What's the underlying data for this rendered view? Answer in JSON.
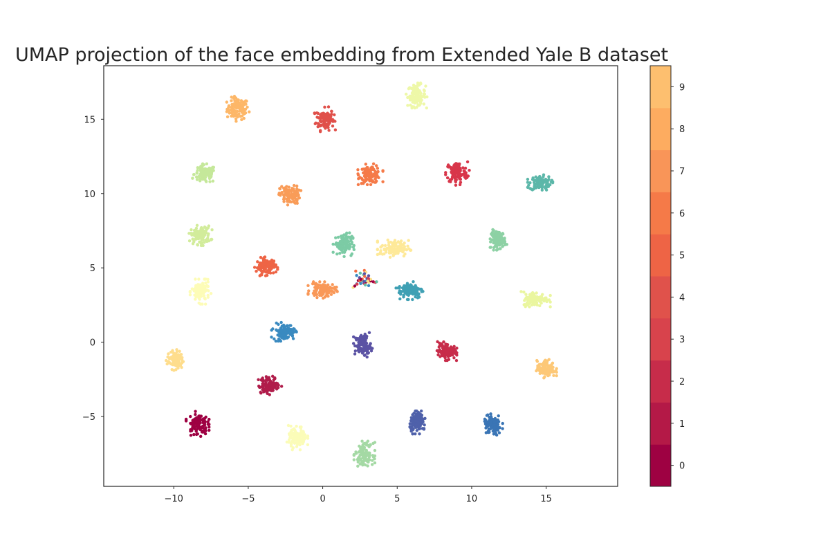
{
  "chart_data": {
    "type": "scatter",
    "title": "UMAP projection of the face embedding from Extended Yale B dataset",
    "xlabel": "",
    "ylabel": "",
    "xlim": [
      -14.7,
      19.8
    ],
    "ylim": [
      -9.7,
      18.6
    ],
    "xticks": [
      -10,
      -5,
      0,
      5,
      10,
      15
    ],
    "yticks": [
      -5,
      0,
      5,
      10,
      15
    ],
    "xtick_labels": [
      "−10",
      "−5",
      "0",
      "5",
      "10",
      "15"
    ],
    "ytick_labels": [
      "−5",
      "0",
      "5",
      "10",
      "15"
    ],
    "grid": false,
    "colorbar": {
      "ticks": [
        "0",
        "1",
        "2",
        "3",
        "4",
        "5",
        "6",
        "7",
        "8",
        "9"
      ],
      "colors": [
        "#9e0142",
        "#b41947",
        "#c72c4a",
        "#d8434c",
        "#e0524b",
        "#ee6445",
        "#f57a48",
        "#f99558",
        "#fdac60",
        "#fdbf6f"
      ]
    },
    "clusters": [
      {
        "x": -5.7,
        "y": 15.7,
        "sx": 0.6,
        "sy": 0.6,
        "color": "#fdb768"
      },
      {
        "x": 0.15,
        "y": 15.0,
        "sx": 0.5,
        "sy": 0.6,
        "color": "#e0504a"
      },
      {
        "x": 6.3,
        "y": 16.6,
        "sx": 0.5,
        "sy": 0.6,
        "color": "#eef8a8"
      },
      {
        "x": -7.9,
        "y": 11.3,
        "sx": 0.6,
        "sy": 0.5,
        "color": "#c5e89a"
      },
      {
        "x": 3.2,
        "y": 11.3,
        "sx": 0.6,
        "sy": 0.5,
        "color": "#f57a48"
      },
      {
        "x": 9.0,
        "y": 11.4,
        "sx": 0.6,
        "sy": 0.6,
        "color": "#d8364a"
      },
      {
        "x": 14.6,
        "y": 10.7,
        "sx": 0.6,
        "sy": 0.4,
        "color": "#5cb7a9"
      },
      {
        "x": -2.2,
        "y": 9.9,
        "sx": 0.55,
        "sy": 0.5,
        "color": "#f99c58"
      },
      {
        "x": -8.2,
        "y": 7.2,
        "sx": 0.55,
        "sy": 0.5,
        "color": "#d2ec9b"
      },
      {
        "x": 11.8,
        "y": 6.9,
        "sx": 0.4,
        "sy": 0.5,
        "color": "#8dd1a4"
      },
      {
        "x": -3.8,
        "y": 5.1,
        "sx": 0.55,
        "sy": 0.45,
        "color": "#ee6445"
      },
      {
        "x": -8.2,
        "y": 3.4,
        "sx": 0.5,
        "sy": 0.6,
        "color": "#fdfcb7"
      },
      {
        "x": 0.0,
        "y": 3.5,
        "sx": 0.7,
        "sy": 0.4,
        "color": "#f99858"
      },
      {
        "x": 1.4,
        "y": 6.6,
        "sx": 0.5,
        "sy": 0.6,
        "color": "#7ccba5"
      },
      {
        "x": 4.8,
        "y": 6.3,
        "sx": 0.8,
        "sy": 0.45,
        "color": "#fee999"
      },
      {
        "x": 5.9,
        "y": 3.5,
        "sx": 0.7,
        "sy": 0.45,
        "color": "#3fa0b4"
      },
      {
        "x": 14.3,
        "y": 2.9,
        "sx": 0.7,
        "sy": 0.4,
        "color": "#eaf69f"
      },
      {
        "x": -2.6,
        "y": 0.7,
        "sx": 0.6,
        "sy": 0.45,
        "color": "#3a8ac0"
      },
      {
        "x": 2.7,
        "y": -0.2,
        "sx": 0.45,
        "sy": 0.6,
        "color": "#5b53a4"
      },
      {
        "x": 8.3,
        "y": -0.6,
        "sx": 0.5,
        "sy": 0.45,
        "color": "#c72c4a"
      },
      {
        "x": -9.9,
        "y": -1.2,
        "sx": 0.45,
        "sy": 0.5,
        "color": "#fedd8d"
      },
      {
        "x": 15.0,
        "y": -1.8,
        "sx": 0.5,
        "sy": 0.45,
        "color": "#fdc877"
      },
      {
        "x": -3.6,
        "y": -2.9,
        "sx": 0.6,
        "sy": 0.45,
        "color": "#b01c4a"
      },
      {
        "x": -8.4,
        "y": -5.5,
        "sx": 0.55,
        "sy": 0.6,
        "color": "#9e0142"
      },
      {
        "x": -1.7,
        "y": -6.4,
        "sx": 0.5,
        "sy": 0.6,
        "color": "#fbfcb8"
      },
      {
        "x": 6.4,
        "y": -5.4,
        "sx": 0.45,
        "sy": 0.55,
        "color": "#4f61aa"
      },
      {
        "x": 11.4,
        "y": -5.6,
        "sx": 0.5,
        "sy": 0.55,
        "color": "#3a75b5"
      },
      {
        "x": 2.8,
        "y": -7.5,
        "sx": 0.5,
        "sy": 0.6,
        "color": "#a4d9a4"
      },
      {
        "x": 2.8,
        "y": 4.2,
        "sx": 0.6,
        "sy": 0.5,
        "color": "#5b53a4",
        "mixed": true
      }
    ]
  }
}
